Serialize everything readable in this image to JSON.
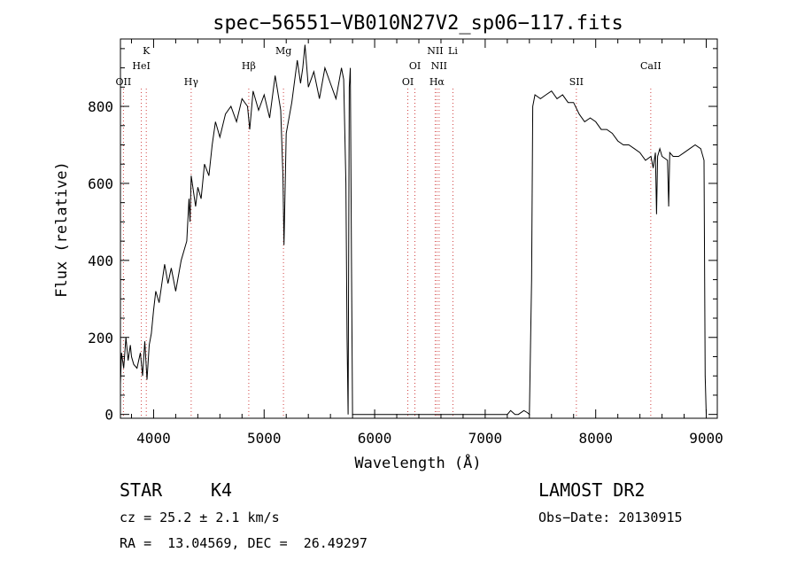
{
  "title": "spec−56551−VB010N27V2_sp06−117.fits",
  "chart_data": {
    "type": "line",
    "xlabel": "Wavelength (Å)",
    "ylabel": "Flux (relative)",
    "xlim": [
      3700,
      9100
    ],
    "ylim": [
      -10,
      975
    ],
    "xticks": [
      4000,
      5000,
      6000,
      7000,
      8000,
      9000
    ],
    "yticks": [
      0,
      200,
      400,
      600,
      800
    ],
    "grid": false,
    "series": [
      {
        "x": [
          3700,
          3710,
          3730,
          3750,
          3770,
          3790,
          3800,
          3820,
          3850,
          3880,
          3900,
          3920,
          3940,
          3960,
          3980,
          4000,
          4020,
          4050,
          4080,
          4100,
          4130,
          4160,
          4200,
          4250,
          4300,
          4320,
          4330,
          4340,
          4380,
          4400,
          4430,
          4460,
          4500,
          4530,
          4560,
          4600,
          4650,
          4700,
          4750,
          4800,
          4850,
          4870,
          4900,
          4950,
          5000,
          5050,
          5100,
          5150,
          5170,
          5180,
          5200,
          5250,
          5300,
          5330,
          5350,
          5370,
          5400,
          5450,
          5500,
          5550,
          5600,
          5650,
          5700,
          5720,
          5740,
          5750,
          5760,
          5770,
          5780,
          5790,
          5800,
          5850,
          6000,
          6500,
          7000,
          7200,
          7230,
          7250,
          7270,
          7300,
          7350,
          7380,
          7400,
          7420,
          7430,
          7450,
          7500,
          7550,
          7600,
          7650,
          7700,
          7750,
          7800,
          7850,
          7900,
          7950,
          8000,
          8050,
          8100,
          8150,
          8200,
          8250,
          8300,
          8350,
          8400,
          8450,
          8500,
          8520,
          8540,
          8550,
          8560,
          8580,
          8600,
          8650,
          8660,
          8670,
          8700,
          8750,
          8800,
          8850,
          8900,
          8950,
          8980,
          8990,
          9000
        ],
        "y": [
          80,
          160,
          120,
          200,
          140,
          180,
          150,
          130,
          120,
          160,
          100,
          190,
          90,
          180,
          210,
          270,
          320,
          290,
          350,
          390,
          340,
          380,
          320,
          400,
          450,
          560,
          500,
          620,
          540,
          590,
          560,
          650,
          620,
          700,
          760,
          720,
          780,
          800,
          760,
          820,
          800,
          740,
          840,
          790,
          830,
          770,
          880,
          790,
          620,
          440,
          730,
          810,
          920,
          860,
          900,
          960,
          850,
          890,
          820,
          900,
          860,
          820,
          900,
          870,
          600,
          200,
          0,
          850,
          900,
          400,
          0,
          0,
          0,
          0,
          0,
          0,
          10,
          5,
          0,
          0,
          10,
          5,
          0,
          350,
          800,
          830,
          820,
          830,
          840,
          820,
          830,
          810,
          810,
          780,
          760,
          770,
          760,
          740,
          740,
          730,
          710,
          700,
          700,
          690,
          680,
          660,
          670,
          640,
          680,
          520,
          670,
          690,
          670,
          660,
          540,
          680,
          670,
          670,
          680,
          690,
          700,
          690,
          660,
          100,
          0
        ]
      }
    ],
    "lines": [
      {
        "name": "OII",
        "x": 3727,
        "row": 0
      },
      {
        "name": "K",
        "x": 3934,
        "row": 2
      },
      {
        "name": "HeI",
        "x": 3889,
        "row": 1
      },
      {
        "name": "Hγ",
        "x": 4340,
        "row": 0
      },
      {
        "name": "Hβ",
        "x": 4861,
        "row": 1
      },
      {
        "name": "Mg",
        "x": 5175,
        "row": 2
      },
      {
        "name": "OI",
        "x": 6300,
        "row": 0
      },
      {
        "name": "OI",
        "x": 6364,
        "row": 1
      },
      {
        "name": "Hα",
        "x": 6563,
        "row": 0
      },
      {
        "name": "NII",
        "x": 6583,
        "row": 1
      },
      {
        "name": "NII",
        "x": 6548,
        "row": 2
      },
      {
        "name": "Li",
        "x": 6708,
        "row": 2
      },
      {
        "name": "SII",
        "x": 7825,
        "row": 0
      },
      {
        "name": "CaII",
        "x": 8498,
        "row": 1
      }
    ]
  },
  "footer": {
    "class_label": "STAR",
    "subclass": "K4",
    "survey": "LAMOST DR2",
    "cz": "cz = 25.2 ± 2.1 km/s",
    "obs_date": "Obs−Date: 20130915",
    "coords": "RA =  13.04569, DEC =  26.49297"
  }
}
